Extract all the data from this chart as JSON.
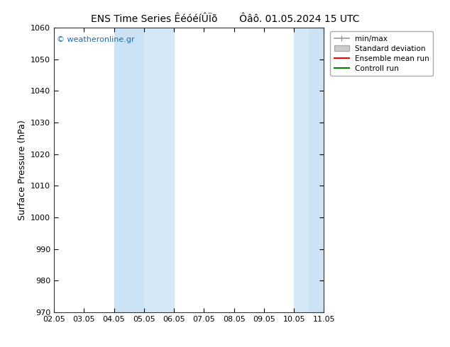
{
  "title": "ENS Time Series ÊéóéíÛÏõ       Ôâô. 01.05.2024 15 UTC",
  "ylabel": "Surface Pressure (hPa)",
  "ylim": [
    970,
    1060
  ],
  "yticks": [
    970,
    980,
    990,
    1000,
    1010,
    1020,
    1030,
    1040,
    1050,
    1060
  ],
  "xtick_labels": [
    "02.05",
    "03.05",
    "04.05",
    "05.05",
    "06.05",
    "07.05",
    "08.05",
    "09.05",
    "10.05",
    "11.05"
  ],
  "xlim": [
    0,
    9
  ],
  "watermark": "© weatheronline.gr",
  "watermark_color": "#1a6bb5",
  "bg_color": "#ffffff",
  "plot_bg_color": "#ffffff",
  "shaded_bands": [
    {
      "x_start": 2.0,
      "x_end": 2.5,
      "color": "#d8eaf8"
    },
    {
      "x_start": 2.5,
      "x_end": 3.5,
      "color": "#c5dff5"
    },
    {
      "x_start": 3.5,
      "x_end": 4.0,
      "color": "#d8eaf8"
    },
    {
      "x_start": 8.0,
      "x_end": 8.5,
      "color": "#d8eaf8"
    },
    {
      "x_start": 8.5,
      "x_end": 9.0,
      "color": "#d8eaf8"
    }
  ],
  "legend_entries": [
    {
      "label": "min/max",
      "color": "#999999",
      "lw": 1.2
    },
    {
      "label": "Standard deviation",
      "color": "#cccccc",
      "lw": 5
    },
    {
      "label": "Ensemble mean run",
      "color": "#ff0000",
      "lw": 1.5
    },
    {
      "label": "Controll run",
      "color": "#008000",
      "lw": 1.5
    }
  ],
  "title_fontsize": 10,
  "tick_fontsize": 8,
  "ylabel_fontsize": 9,
  "legend_fontsize": 7.5
}
